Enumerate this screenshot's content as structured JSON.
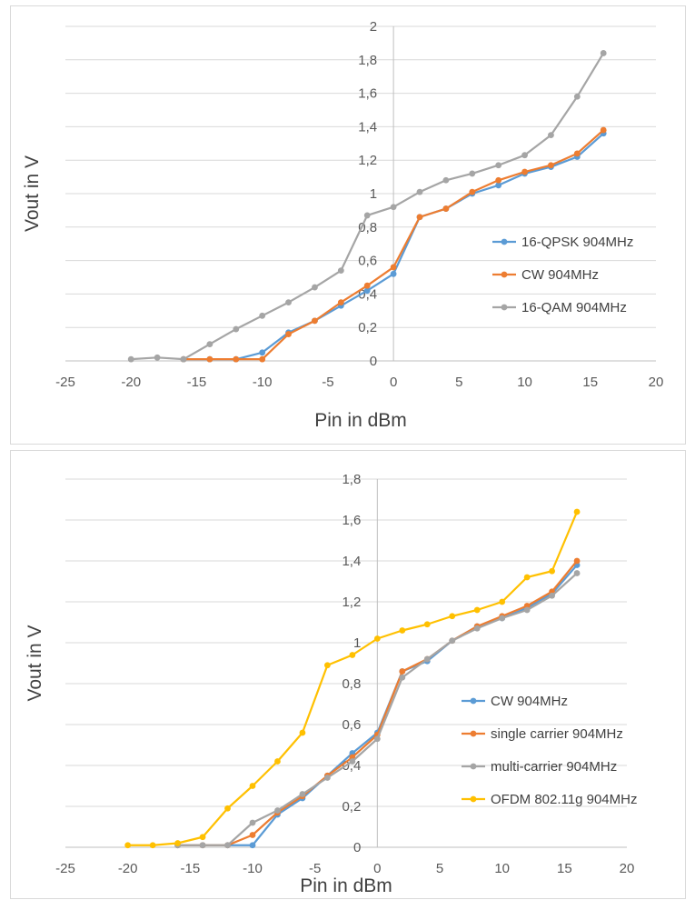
{
  "chart_data": [
    {
      "type": "line",
      "title": "",
      "xlabel": "Pin in dBm",
      "ylabel": "Vout in V",
      "xlim": [
        -25,
        20
      ],
      "ylim": [
        0,
        2
      ],
      "xticks": [
        -25,
        -20,
        -15,
        -10,
        -5,
        0,
        5,
        10,
        15,
        20
      ],
      "yticks": [
        "0",
        "0,2",
        "0,4",
        "0,6",
        "0,8",
        "1",
        "1,2",
        "1,4",
        "1,6",
        "1,8",
        "2"
      ],
      "grid": "horizontal",
      "legend": "right",
      "series": [
        {
          "name": "16-QPSK 904MHz",
          "color": "#5b9bd5",
          "x": [
            -16,
            -14,
            -12,
            -10,
            -8,
            -6,
            -4,
            -2,
            0,
            2,
            4,
            6,
            8,
            10,
            12,
            14,
            16
          ],
          "y": [
            0.01,
            0.01,
            0.01,
            0.05,
            0.17,
            0.24,
            0.33,
            0.42,
            0.52,
            0.86,
            0.91,
            1.0,
            1.05,
            1.12,
            1.16,
            1.22,
            1.36
          ]
        },
        {
          "name": "CW 904MHz",
          "color": "#ed7d31",
          "x": [
            -16,
            -14,
            -12,
            -10,
            -8,
            -6,
            -4,
            -2,
            0,
            2,
            4,
            6,
            8,
            10,
            12,
            14,
            16
          ],
          "y": [
            0.01,
            0.01,
            0.01,
            0.01,
            0.16,
            0.24,
            0.35,
            0.45,
            0.56,
            0.86,
            0.91,
            1.01,
            1.08,
            1.13,
            1.17,
            1.24,
            1.38
          ]
        },
        {
          "name": "16-QAM 904MHz",
          "color": "#a5a5a5",
          "x": [
            -20,
            -18,
            -16,
            -14,
            -12,
            -10,
            -8,
            -6,
            -4,
            -2,
            0,
            2,
            4,
            6,
            8,
            10,
            12,
            14,
            16
          ],
          "y": [
            0.01,
            0.02,
            0.01,
            0.1,
            0.19,
            0.27,
            0.35,
            0.44,
            0.54,
            0.87,
            0.92,
            1.01,
            1.08,
            1.12,
            1.17,
            1.23,
            1.35,
            1.58,
            1.84
          ]
        }
      ]
    },
    {
      "type": "line",
      "title": "",
      "xlabel": "Pin in dBm",
      "ylabel": "Vout in V",
      "xlim": [
        -25,
        20
      ],
      "ylim": [
        0,
        1.8
      ],
      "xticks": [
        -25,
        -20,
        -15,
        -10,
        -5,
        0,
        5,
        10,
        15,
        20
      ],
      "yticks": [
        "0",
        "0,2",
        "0,4",
        "0,6",
        "0,8",
        "1",
        "1,2",
        "1,4",
        "1,6",
        "1,8"
      ],
      "grid": "horizontal",
      "legend": "right",
      "series": [
        {
          "name": "CW 904MHz",
          "color": "#5b9bd5",
          "x": [
            -16,
            -14,
            -12,
            -10,
            -8,
            -6,
            -4,
            -2,
            0,
            2,
            4,
            6,
            8,
            10,
            12,
            14,
            16
          ],
          "y": [
            0.01,
            0.01,
            0.01,
            0.01,
            0.16,
            0.24,
            0.35,
            0.46,
            0.56,
            0.86,
            0.91,
            1.01,
            1.08,
            1.12,
            1.17,
            1.24,
            1.38
          ]
        },
        {
          "name": "single carrier 904MHz",
          "color": "#ed7d31",
          "x": [
            -16,
            -14,
            -12,
            -10,
            -8,
            -6,
            -4,
            -2,
            0,
            2,
            4,
            6,
            8,
            10,
            12,
            14,
            16
          ],
          "y": [
            0.01,
            0.01,
            0.01,
            0.06,
            0.17,
            0.25,
            0.35,
            0.44,
            0.55,
            0.86,
            0.92,
            1.01,
            1.08,
            1.13,
            1.18,
            1.25,
            1.4
          ]
        },
        {
          "name": "multi-carrier 904MHz",
          "color": "#a5a5a5",
          "x": [
            -16,
            -14,
            -12,
            -10,
            -8,
            -6,
            -4,
            -2,
            0,
            2,
            4,
            6,
            8,
            10,
            12,
            14,
            16
          ],
          "y": [
            0.01,
            0.01,
            0.01,
            0.12,
            0.18,
            0.26,
            0.34,
            0.42,
            0.53,
            0.83,
            0.92,
            1.01,
            1.07,
            1.12,
            1.16,
            1.23,
            1.34
          ]
        },
        {
          "name": "OFDM 802.11g 904MHz",
          "color": "#ffc000",
          "x": [
            -20,
            -18,
            -16,
            -14,
            -12,
            -10,
            -8,
            -6,
            -4,
            -2,
            0,
            2,
            4,
            6,
            8,
            10,
            12,
            14,
            16
          ],
          "y": [
            0.01,
            0.01,
            0.02,
            0.05,
            0.19,
            0.3,
            0.42,
            0.56,
            0.89,
            0.94,
            1.02,
            1.06,
            1.09,
            1.13,
            1.16,
            1.2,
            1.32,
            1.35,
            1.64
          ]
        }
      ]
    }
  ]
}
